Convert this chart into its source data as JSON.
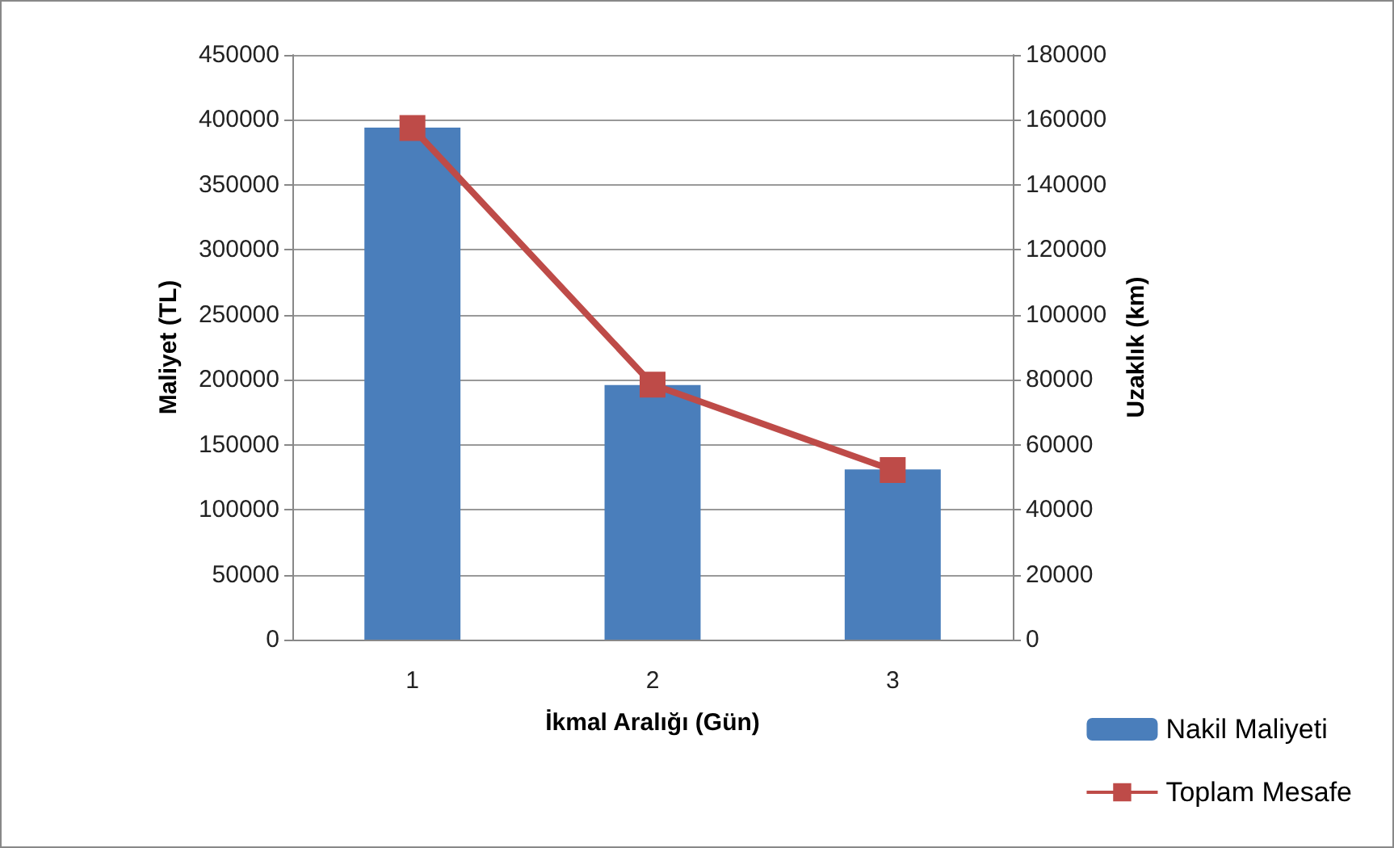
{
  "chart_data": {
    "type": "bar",
    "xlabel": "İkmal Aralığı (Gün)",
    "ylabel": "Maliyet (TL)",
    "y2label": "Uzaklık (km)",
    "categories": [
      "1",
      "2",
      "3"
    ],
    "series": [
      {
        "name": "Nakil Maliyeti",
        "color": "#4a7ebb",
        "values": [
          394000,
          196000,
          131000
        ]
      },
      {
        "name": "Toplam Mesafe",
        "type": "line",
        "axis": "y2",
        "color": "#be4b48",
        "marker": "square",
        "values": [
          157500,
          78500,
          52200
        ]
      }
    ],
    "ylim": [
      0,
      450000
    ],
    "yticks": [
      0,
      50000,
      100000,
      150000,
      200000,
      250000,
      300000,
      350000,
      400000,
      450000
    ],
    "y2lim": [
      0,
      180000
    ],
    "y2ticks": [
      0,
      20000,
      40000,
      60000,
      80000,
      100000,
      120000,
      140000,
      160000,
      180000
    ],
    "grid": "y",
    "legend": "bottom right"
  }
}
